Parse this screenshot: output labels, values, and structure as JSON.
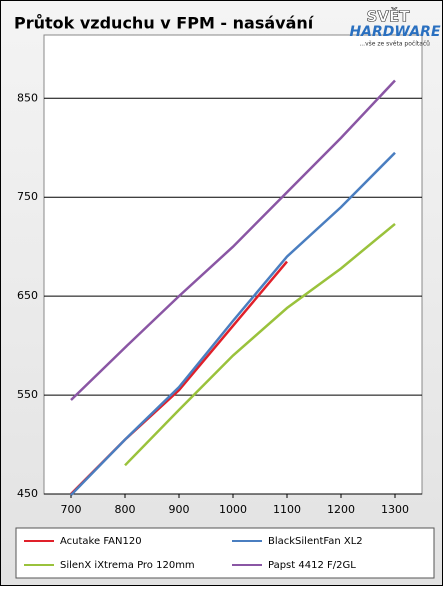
{
  "chart_data": {
    "type": "line",
    "title": "Průtok vzduchu v FPM - nasávání",
    "x": [
      700,
      800,
      900,
      1000,
      1100,
      1200,
      1300
    ],
    "series": [
      {
        "name": "Acutake FAN120",
        "color": "#e0202a",
        "values": [
          450,
          505,
          555,
          620,
          685,
          null,
          null
        ]
      },
      {
        "name": "BlackSilentFan XL2",
        "color": "#4a7ec0",
        "values": [
          449,
          505,
          558,
          625,
          690,
          740,
          795
        ]
      },
      {
        "name": "SilenX iXtrema Pro 120mm",
        "color": "#9ac23c",
        "values": [
          null,
          479,
          535,
          590,
          638,
          678,
          723
        ]
      },
      {
        "name": "Papst 4412 F/2GL",
        "color": "#8a56a4",
        "values": [
          545,
          598,
          650,
          700,
          755,
          810,
          868
        ]
      }
    ],
    "xlim": [
      650,
      1350
    ],
    "xticks": [
      700,
      800,
      900,
      1000,
      1100,
      1200,
      1300
    ],
    "ylim": [
      450,
      914
    ],
    "yticks": [
      450,
      550,
      650,
      750,
      850
    ],
    "grid": true
  },
  "logo": {
    "top": "SVĚT",
    "bottom": "HARDWARE",
    "tagline": "...vše ze světa počítačů"
  }
}
